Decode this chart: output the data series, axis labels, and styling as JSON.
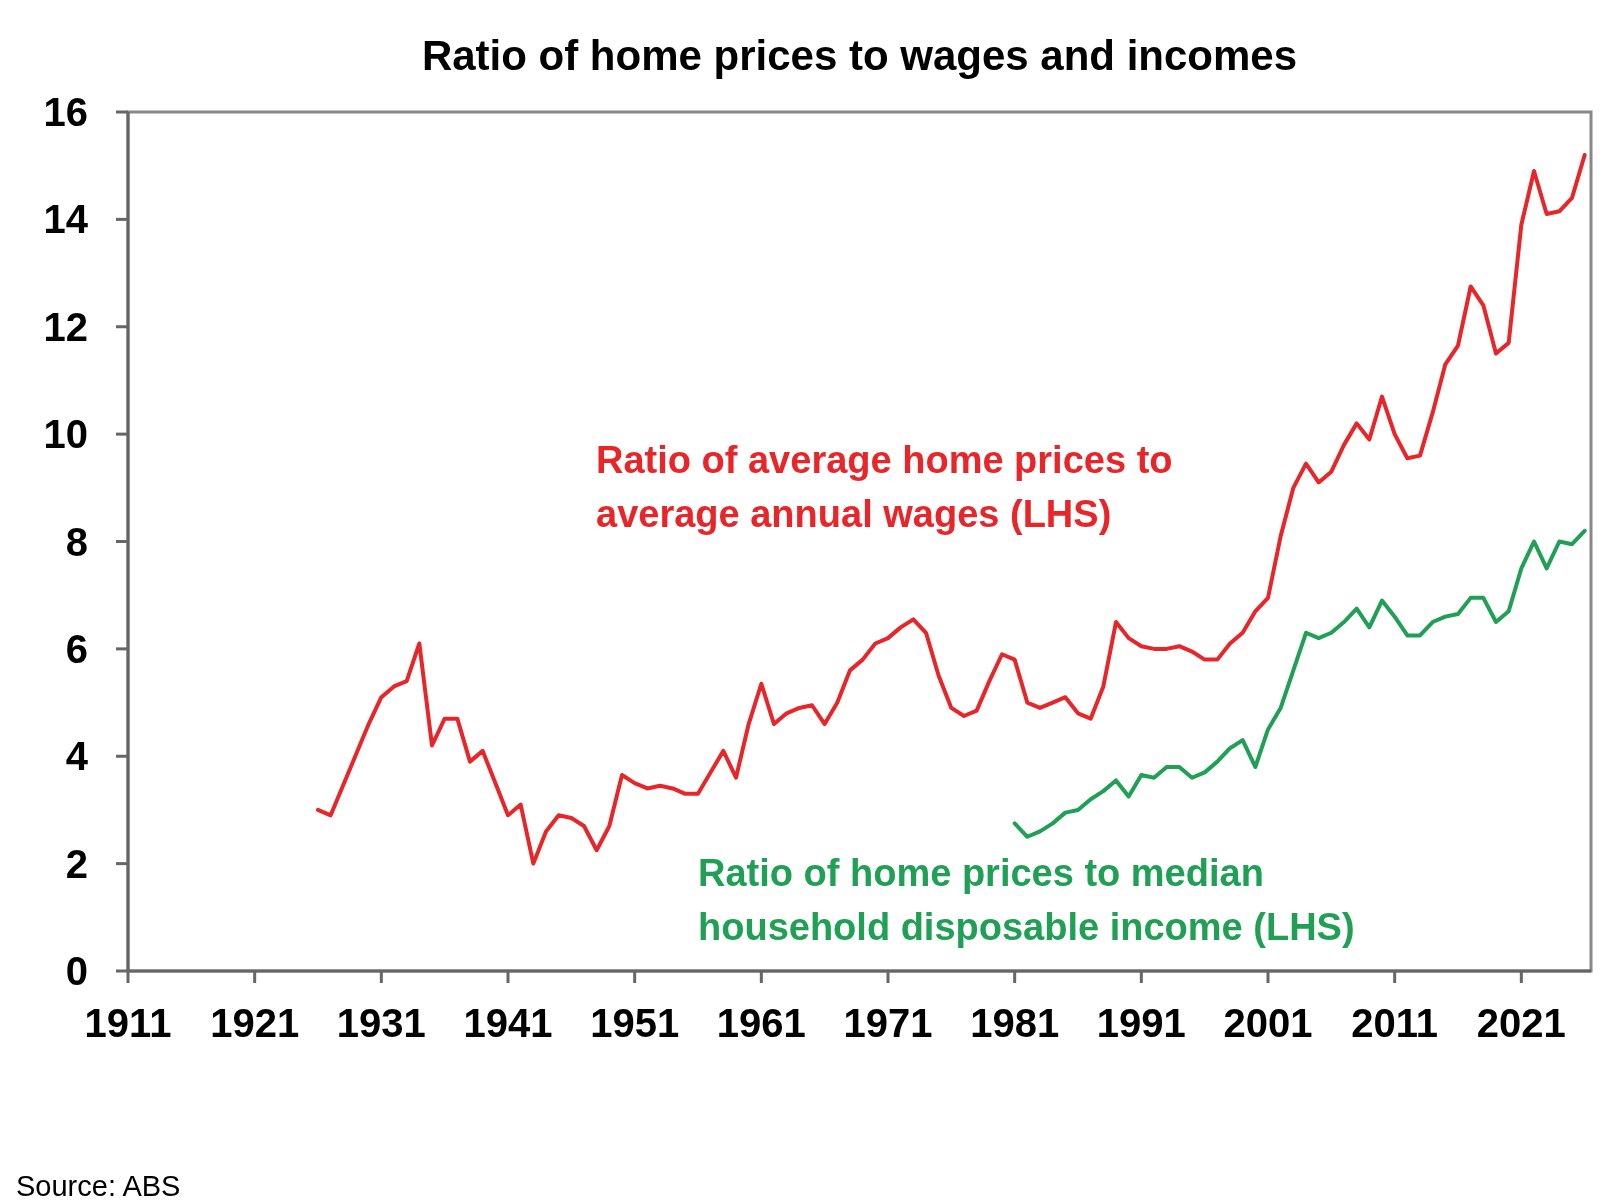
{
  "chart_data": {
    "type": "line",
    "title": "Ratio of home prices to wages and incomes",
    "xlim": [
      1911,
      2026.5
    ],
    "xticks": [
      1911,
      1921,
      1931,
      1941,
      1951,
      1961,
      1971,
      1981,
      1991,
      2001,
      2011,
      2021
    ],
    "ylim": [
      0,
      16
    ],
    "yticks": [
      0,
      2,
      4,
      6,
      8,
      10,
      12,
      14,
      16
    ],
    "grid": false,
    "series": [
      {
        "name": "Ratio of average home prices to average annual wages (LHS)",
        "color": "#e8262a",
        "x": [
          1926,
          1927,
          1930,
          1931,
          1932,
          1933,
          1934,
          1935,
          1936,
          1937,
          1938,
          1939,
          1940,
          1941,
          1942,
          1943,
          1944,
          1945,
          1946,
          1947,
          1948,
          1949,
          1950,
          1951,
          1952,
          1953,
          1954,
          1955,
          1956,
          1957,
          1958,
          1959,
          1960,
          1961,
          1962,
          1963,
          1964,
          1965,
          1966,
          1967,
          1968,
          1969,
          1970,
          1971,
          1972,
          1973,
          1974,
          1975,
          1976,
          1977,
          1978,
          1979,
          1980,
          1981,
          1982,
          1983,
          1984,
          1985,
          1986,
          1987,
          1988,
          1989,
          1990,
          1991,
          1992,
          1993,
          1994,
          1995,
          1996,
          1997,
          1998,
          1999,
          2000,
          2001,
          2002,
          2003,
          2004,
          2005,
          2006,
          2007,
          2008,
          2009,
          2010,
          2011,
          2012,
          2013,
          2014,
          2015,
          2016,
          2017,
          2018,
          2019,
          2020,
          2021,
          2022,
          2023,
          2024,
          2025,
          2026
        ],
        "values": [
          3.0,
          2.9,
          4.6,
          5.1,
          5.3,
          5.4,
          6.1,
          4.2,
          4.7,
          4.7,
          3.9,
          4.1,
          3.5,
          2.9,
          3.1,
          2.0,
          2.6,
          2.9,
          2.85,
          2.7,
          2.25,
          2.7,
          3.65,
          3.5,
          3.4,
          3.45,
          3.4,
          3.3,
          3.3,
          3.7,
          4.1,
          3.6,
          4.6,
          5.35,
          4.6,
          4.8,
          4.9,
          4.95,
          4.6,
          5.0,
          5.6,
          5.8,
          6.1,
          6.2,
          6.4,
          6.55,
          6.3,
          5.5,
          4.9,
          4.75,
          4.85,
          5.4,
          5.9,
          5.8,
          5.0,
          4.9,
          5.0,
          5.1,
          4.8,
          4.7,
          5.3,
          6.5,
          6.2,
          6.05,
          6.0,
          6.0,
          6.05,
          5.95,
          5.8,
          5.8,
          6.1,
          6.3,
          6.7,
          6.95,
          8.1,
          9.0,
          9.45,
          9.1,
          9.3,
          9.8,
          10.2,
          9.9,
          10.7,
          10.0,
          9.55,
          9.6,
          10.4,
          11.3,
          11.65,
          12.75,
          12.4,
          11.5,
          11.7,
          13.9,
          14.9,
          14.1,
          14.15,
          14.4,
          15.2
        ]
      },
      {
        "name": "Ratio of home prices to median household disposable income (LHS)",
        "color": "#1fa055",
        "x": [
          1981,
          1982,
          1983,
          1984,
          1985,
          1986,
          1987,
          1988,
          1989,
          1990,
          1991,
          1992,
          1993,
          1994,
          1995,
          1996,
          1997,
          1998,
          1999,
          2000,
          2001,
          2002,
          2003,
          2004,
          2005,
          2006,
          2007,
          2008,
          2009,
          2010,
          2011,
          2012,
          2013,
          2014,
          2015,
          2016,
          2017,
          2018,
          2019,
          2020,
          2021,
          2022,
          2023,
          2024,
          2025,
          2026
        ],
        "values": [
          2.75,
          2.5,
          2.6,
          2.75,
          2.95,
          3.0,
          3.2,
          3.35,
          3.55,
          3.25,
          3.65,
          3.6,
          3.8,
          3.8,
          3.6,
          3.7,
          3.9,
          4.15,
          4.3,
          3.8,
          4.5,
          4.9,
          5.6,
          6.3,
          6.2,
          6.3,
          6.5,
          6.75,
          6.4,
          6.9,
          6.6,
          6.25,
          6.25,
          6.5,
          6.6,
          6.65,
          6.95,
          6.95,
          6.5,
          6.7,
          7.5,
          8.0,
          7.5,
          8.0,
          7.95,
          8.2
        ]
      }
    ],
    "annotations": [
      "Source: ABS"
    ]
  }
}
